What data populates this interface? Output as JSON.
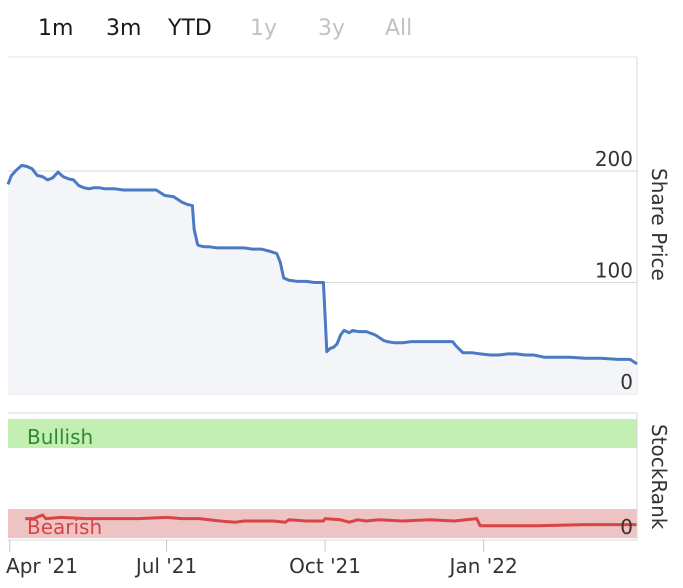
{
  "range_selector": [
    {
      "label": "1m",
      "enabled": true
    },
    {
      "label": "3m",
      "enabled": true
    },
    {
      "label": "YTD",
      "enabled": true
    },
    {
      "label": "1y",
      "enabled": false
    },
    {
      "label": "3y",
      "enabled": false
    },
    {
      "label": "All",
      "enabled": false
    }
  ],
  "colors": {
    "price_line": "#4a7ac4",
    "price_fill": "#f4f5f9",
    "stockrank_line": "#d94444",
    "bullish_band": "#c3efb3",
    "bullish_text": "#2e8b2e",
    "bearish_band": "#edc3c3",
    "bearish_text": "#d94444",
    "grid": "#d8d8d8",
    "axis_text": "#333333"
  },
  "chart_data": [
    {
      "type": "line",
      "ylabel": "Share Price",
      "ylim": [
        0,
        230
      ],
      "yticks": [
        0,
        100,
        200
      ],
      "x_ticks": [
        "Apr '21",
        "Jul '21",
        "Oct '21",
        "Jan '22"
      ],
      "x_tick_dates": [
        "2021-04-01",
        "2021-07-01",
        "2021-10-01",
        "2022-01-01"
      ],
      "xlim": [
        "2021-03-31",
        "2022-03-31"
      ],
      "grid": true,
      "series": [
        {
          "x": [
            "2021-03-31",
            "2021-04-02",
            "2021-04-05",
            "2021-04-08",
            "2021-04-11",
            "2021-04-14",
            "2021-04-17",
            "2021-04-20",
            "2021-04-23",
            "2021-04-26",
            "2021-04-29",
            "2021-05-02",
            "2021-05-05",
            "2021-05-08",
            "2021-05-11",
            "2021-05-14",
            "2021-05-17",
            "2021-05-20",
            "2021-05-23",
            "2021-05-26",
            "2021-06-01",
            "2021-06-06",
            "2021-06-10",
            "2021-06-15",
            "2021-06-20",
            "2021-06-25",
            "2021-06-30",
            "2021-07-05",
            "2021-07-10",
            "2021-07-13",
            "2021-07-16",
            "2021-07-17",
            "2021-07-19",
            "2021-07-20",
            "2021-07-23",
            "2021-07-26",
            "2021-07-30",
            "2021-08-05",
            "2021-08-15",
            "2021-08-20",
            "2021-08-25",
            "2021-08-30",
            "2021-09-03",
            "2021-09-05",
            "2021-09-07",
            "2021-09-10",
            "2021-09-15",
            "2021-09-20",
            "2021-09-25",
            "2021-09-30",
            "2021-10-01",
            "2021-10-02",
            "2021-10-04",
            "2021-10-06",
            "2021-10-08",
            "2021-10-10",
            "2021-10-12",
            "2021-10-15",
            "2021-10-17",
            "2021-10-20",
            "2021-10-25",
            "2021-10-30",
            "2021-11-04",
            "2021-11-06",
            "2021-11-10",
            "2021-11-15",
            "2021-11-20",
            "2021-11-25",
            "2021-11-30",
            "2021-12-05",
            "2021-12-10",
            "2021-12-14",
            "2021-12-16",
            "2021-12-20",
            "2021-12-25",
            "2021-12-30",
            "2022-01-05",
            "2022-01-10",
            "2022-01-15",
            "2022-01-20",
            "2022-01-25",
            "2022-01-30",
            "2022-02-05",
            "2022-02-10",
            "2022-02-20",
            "2022-03-01",
            "2022-03-10",
            "2022-03-20",
            "2022-03-27",
            "2022-03-31"
          ],
          "y": [
            188,
            196,
            201,
            205,
            204,
            202,
            196,
            195,
            192,
            194,
            199,
            195,
            193,
            192,
            187,
            185,
            184,
            185,
            185,
            184,
            184,
            183,
            183,
            183,
            183,
            183,
            178,
            177,
            172,
            170,
            169,
            148,
            134,
            133,
            132,
            132,
            131,
            131,
            131,
            130,
            130,
            128,
            126,
            118,
            104,
            102,
            101,
            101,
            100,
            100,
            70,
            38,
            41,
            42,
            45,
            53,
            57,
            55,
            57,
            56,
            56,
            53,
            48,
            47,
            46,
            46,
            47,
            47,
            47,
            47,
            47,
            47,
            43,
            37,
            37,
            36,
            35,
            35,
            36,
            36,
            35,
            35,
            33,
            33,
            33,
            32,
            32,
            31,
            31,
            27
          ]
        }
      ]
    },
    {
      "type": "line",
      "ylabel": "StockRank",
      "ylim": [
        0,
        100
      ],
      "yticks": [
        0
      ],
      "bands": [
        {
          "label": "Bullish",
          "from": 70,
          "to": 100
        },
        {
          "label": "Bearish",
          "from": 0,
          "to": 30
        }
      ],
      "series": [
        {
          "x": [
            "2021-04-10",
            "2021-04-15",
            "2021-04-20",
            "2021-04-22",
            "2021-05-01",
            "2021-05-15",
            "2021-06-01",
            "2021-06-15",
            "2021-07-01",
            "2021-07-10",
            "2021-07-20",
            "2021-08-01",
            "2021-08-10",
            "2021-08-15",
            "2021-09-01",
            "2021-09-08",
            "2021-09-10",
            "2021-09-20",
            "2021-09-30",
            "2021-10-01",
            "2021-10-10",
            "2021-10-15",
            "2021-10-20",
            "2021-10-25",
            "2021-11-01",
            "2021-11-15",
            "2021-12-01",
            "2021-12-15",
            "2021-12-28",
            "2021-12-30",
            "2022-01-10",
            "2022-02-01",
            "2022-03-01",
            "2022-03-20",
            "2022-03-31"
          ],
          "y": [
            17,
            17,
            20,
            17,
            18,
            17,
            17,
            17,
            18,
            17,
            17,
            15,
            14,
            15,
            15,
            14,
            16,
            15,
            15,
            17,
            16,
            14,
            16,
            15,
            16,
            15,
            16,
            15,
            17,
            11,
            11,
            11,
            12,
            12,
            12
          ]
        }
      ]
    }
  ]
}
